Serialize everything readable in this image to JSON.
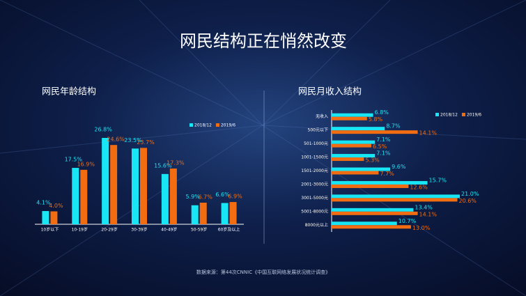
{
  "header": {
    "title": "网民结构正在悄然改变"
  },
  "footer": {
    "source": "数据来源：第44次CNNIC《中国互联网络发展状况统计调查》"
  },
  "chart_data": [
    {
      "type": "bar",
      "orientation": "vertical",
      "title": "网民年龄结构",
      "categories": [
        "10岁以下",
        "10-19岁",
        "20-29岁",
        "30-39岁",
        "40-49岁",
        "50-59岁",
        "60岁及以上"
      ],
      "series": [
        {
          "name": "2018/12",
          "color": "#18e6f5",
          "values": [
            4.1,
            17.5,
            26.8,
            23.5,
            15.6,
            5.9,
            6.6
          ],
          "value_labels": [
            "4.1%",
            "17.5%",
            "26.8%",
            "23.5%",
            "15.6%",
            "5.9%",
            "6.6%"
          ]
        },
        {
          "name": "2019/6",
          "color": "#f26d12",
          "values": [
            4.0,
            16.9,
            24.6,
            23.7,
            17.3,
            6.7,
            6.9
          ],
          "value_labels": [
            "4.0%",
            "16.9%",
            "24.6%",
            "23.7%",
            "17.3%",
            "6.7%",
            "6.9%"
          ]
        }
      ]
    },
    {
      "type": "bar",
      "orientation": "horizontal",
      "title": "网民月收入结构",
      "categories": [
        "无收入",
        "500元以下",
        "501-1000元",
        "1001-1500元",
        "1501-2000元",
        "2001-3000元",
        "3001-5000元",
        "5001-8000元",
        "8000元以上"
      ],
      "series": [
        {
          "name": "2018/12",
          "color": "#18e6f5",
          "values": [
            6.8,
            8.7,
            7.1,
            7.1,
            9.6,
            15.7,
            21.0,
            13.4,
            10.7
          ],
          "value_labels": [
            "6.8%",
            "8.7%",
            "7.1%",
            "7.1%",
            "9.6%",
            "15.7%",
            "21.0%",
            "13.4%",
            "10.7%"
          ]
        },
        {
          "name": "2019/6",
          "color": "#f26d12",
          "values": [
            5.8,
            14.1,
            6.5,
            5.3,
            7.7,
            12.6,
            20.6,
            14.1,
            13.0
          ],
          "value_labels": [
            "5.8%",
            "14.1%",
            "6.5%",
            "5.3%",
            "7.7%",
            "12.6%",
            "20.6%",
            "14.1%",
            "13.0%"
          ]
        }
      ]
    }
  ]
}
